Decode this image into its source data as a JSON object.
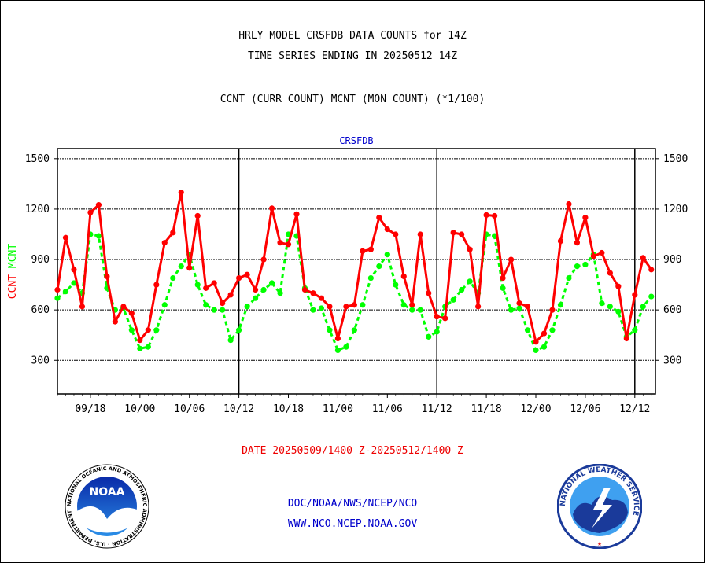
{
  "header": {
    "line1": "HRLY MODEL CRSFDB DATA COUNTS for 14Z",
    "line2": "TIME SERIES ENDING IN 20250512 14Z",
    "line3": "CCNT (CURR COUNT) MCNT (MON COUNT) (*1/100)"
  },
  "footer": {
    "date_range": "DATE 20250509/1400 Z-20250512/1400 Z",
    "org_path": "DOC/NOAA/NWS/NCEP/NCO",
    "website": "WWW.NCO.NCEP.NOAA.GOV"
  },
  "logos": {
    "noaa_text": "NOAA",
    "noaa_ring": "NATIONAL OCEANIC AND ATMOSPHERIC ADMINISTRATION · U.S. DEPARTMENT OF COMMERCE ·",
    "nws_ring": "NATIONAL WEATHER SERVICE"
  },
  "chart_data": {
    "type": "line",
    "title": "CRSFDB",
    "ylabel_left": "CCNT",
    "ylabel_right": "MCNT",
    "ylim": [
      100,
      1560
    ],
    "yticks": [
      300,
      600,
      900,
      1200,
      1500
    ],
    "x_tick_labels": [
      "09/18",
      "10/00",
      "10/06",
      "10/12",
      "10/18",
      "11/00",
      "11/06",
      "11/12",
      "11/18",
      "12/00",
      "12/06",
      "12/12"
    ],
    "x_tick_hours": [
      4,
      10,
      16,
      22,
      28,
      34,
      40,
      46,
      52,
      58,
      64,
      70
    ],
    "xlim": [
      0,
      72.5
    ],
    "day_dividers": [
      22,
      46,
      70
    ],
    "grid": true,
    "colors": {
      "ccnt": "#ff0000",
      "mcnt": "#00ff00",
      "axis": "#000000",
      "title": "#0000cc"
    },
    "series": [
      {
        "name": "CCNT",
        "values": [
          720,
          1030,
          840,
          620,
          1180,
          1225,
          800,
          530,
          620,
          580,
          420,
          480,
          750,
          1000,
          1060,
          1300,
          850,
          1160,
          730,
          760,
          640,
          690,
          790,
          810,
          720,
          900,
          1205,
          1000,
          990,
          1170,
          720,
          700,
          670,
          620,
          430,
          620,
          630,
          950,
          960,
          1150,
          1080,
          1050,
          800,
          630,
          1050,
          700,
          560,
          550,
          1060,
          1050,
          960,
          620,
          1165,
          1160,
          790,
          900,
          640,
          620,
          410,
          460,
          600,
          1010,
          1230,
          1000,
          1150,
          920,
          940,
          820,
          740,
          430,
          690,
          910,
          840
        ]
      },
      {
        "name": "MCNT",
        "values": [
          670,
          710,
          760,
          700,
          1050,
          1040,
          730,
          600,
          610,
          480,
          370,
          380,
          480,
          630,
          790,
          860,
          930,
          750,
          630,
          600,
          600,
          420,
          480,
          620,
          670,
          720,
          760,
          700,
          1050,
          1040,
          730,
          600,
          610,
          480,
          360,
          380,
          480,
          630,
          790,
          860,
          930,
          750,
          630,
          600,
          600,
          440,
          470,
          620,
          660,
          720,
          770,
          700,
          1050,
          1040,
          730,
          600,
          610,
          480,
          360,
          380,
          480,
          630,
          790,
          860,
          870,
          930,
          640,
          620,
          590,
          440,
          480,
          620,
          680
        ]
      }
    ]
  }
}
